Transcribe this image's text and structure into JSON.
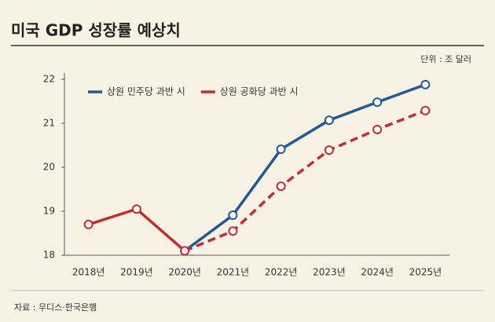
{
  "chart_data": {
    "type": "line",
    "title": "미국 GDP 성장률 예상치",
    "unit": "단위 : 조 달러",
    "source": "자료 : 무디스·한국은행",
    "categories": [
      "2018년",
      "2019년",
      "2020년",
      "2021년",
      "2022년",
      "2023년",
      "2024년",
      "2025년"
    ],
    "series": [
      {
        "name": "상원 민주당 과반 시",
        "color": "#1f5a9a",
        "values": [
          null,
          null,
          18.1,
          18.91,
          20.41,
          21.07,
          21.48,
          21.88
        ]
      },
      {
        "name": "상원 공화당 과반 시",
        "color": "#c42b32",
        "values": [
          18.7,
          19.05,
          18.1,
          18.55,
          19.57,
          20.39,
          20.86,
          21.29
        ],
        "dashed_from": 2
      }
    ],
    "ylim": [
      18,
      22
    ],
    "yticks": [
      18,
      19,
      20,
      21,
      22
    ],
    "legend": "top-left"
  }
}
